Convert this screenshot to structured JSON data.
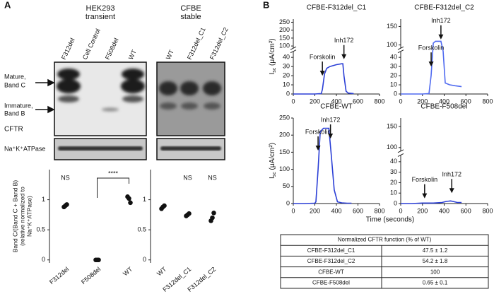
{
  "panel_labels": [
    "A",
    "B"
  ],
  "blots": {
    "groups": [
      {
        "title_lines": [
          "HEK293",
          "transient"
        ],
        "lanes": [
          "F312del",
          "Cell Control",
          "F508del",
          "WT"
        ]
      },
      {
        "title_lines": [
          "CFBE",
          "stable"
        ],
        "lanes": [
          "WT",
          "F312del_C1",
          "F312del_C2"
        ]
      }
    ],
    "band_labels": [
      [
        "Mature,",
        "Band C"
      ],
      [
        "Immature,",
        "Band B"
      ]
    ],
    "protein_labels": [
      "CFTR",
      "Na⁺K⁺ATPase"
    ]
  },
  "time_label": "Time (seconds)",
  "chart_data": [
    {
      "type": "dot",
      "categories": [
        "F312del",
        "F508del",
        "WT"
      ],
      "points": [
        [
          0.88,
          0.9,
          0.92
        ],
        [
          0,
          0,
          0
        ],
        [
          1.05,
          1.02,
          0.95
        ]
      ],
      "color": "#111111",
      "ylim": [
        -0.05,
        1.5
      ],
      "yticks": [
        0,
        0.5,
        1
      ],
      "ylabel_lines": [
        "Band C/(Band C + Band B)",
        "(relative normalized to",
        "Na⁺K⁺ATPase)"
      ],
      "annotations": [
        {
          "text": "NS",
          "category": 0
        }
      ],
      "significance": [
        {
          "text": "****",
          "from": 1,
          "to": 2
        }
      ]
    },
    {
      "type": "dot",
      "categories": [
        "WT",
        "F312del_C1",
        "F312del_C2"
      ],
      "points": [
        [
          0.85,
          0.88,
          0.9
        ],
        [
          0.73,
          0.75,
          0.77
        ],
        [
          0.65,
          0.7,
          0.78
        ]
      ],
      "color": "#111111",
      "ylim": [
        -0.05,
        1.5
      ],
      "yticks": [
        0,
        0.5,
        1
      ],
      "annotations": [
        {
          "text": "NS",
          "category": 1
        },
        {
          "text": "NS",
          "category": 2
        }
      ],
      "significance": []
    },
    {
      "type": "line",
      "title": "CFBE-F312del_C1",
      "color": "#2b3fd6",
      "x": [
        0,
        100,
        200,
        260,
        270,
        290,
        310,
        340,
        400,
        450,
        460,
        470,
        490,
        510,
        560
      ],
      "values": [
        0,
        0,
        0,
        0.5,
        5,
        22,
        28,
        30,
        32,
        33,
        33,
        20,
        3,
        1,
        0.5
      ],
      "xlim": [
        0,
        800
      ],
      "xticks": [
        0,
        200,
        400,
        600,
        800
      ],
      "ylim": [
        0,
        270
      ],
      "yticks": [
        0,
        10,
        20,
        30,
        40,
        100,
        150,
        200,
        250
      ],
      "ybreak": [
        45,
        95
      ],
      "ylabel": {
        "symbol": "I",
        "subscript": "sc",
        "unit": " (μA/cm²)"
      },
      "annotations": [
        {
          "text": "Forskolin",
          "x": 270,
          "y": 20
        },
        {
          "text": "Inh172",
          "x": 470,
          "y": 38
        }
      ]
    },
    {
      "type": "line",
      "title": "CFBE-F312del_C2",
      "color": "#4f6af0",
      "x": [
        0,
        100,
        200,
        260,
        280,
        300,
        320,
        350,
        370,
        390,
        410,
        450,
        500,
        560
      ],
      "values": [
        0,
        0,
        0,
        0.5,
        20,
        105,
        110,
        110,
        110,
        60,
        12,
        10,
        9,
        8
      ],
      "xlim": [
        0,
        800
      ],
      "xticks": [
        0,
        200,
        400,
        600,
        800
      ],
      "ylim": [
        0,
        170
      ],
      "yticks": [
        0,
        10,
        20,
        30,
        40,
        100,
        150
      ],
      "ybreak": [
        45,
        95
      ],
      "annotations": [
        {
          "text": "Forskolin",
          "x": 280,
          "y": 30
        },
        {
          "text": "Inh172",
          "x": 370,
          "y": 115
        }
      ]
    },
    {
      "type": "line",
      "title": "CFBE-WT",
      "color": "#2b3fd6",
      "x": [
        0,
        100,
        200,
        210,
        230,
        250,
        280,
        310,
        330,
        350,
        380,
        410,
        450,
        500,
        540
      ],
      "values": [
        0,
        0,
        1,
        5,
        100,
        210,
        220,
        220,
        220,
        150,
        40,
        5,
        2,
        1,
        1
      ],
      "xlim": [
        0,
        800
      ],
      "xticks": [
        0,
        200,
        400,
        600,
        800
      ],
      "ylim": [
        0,
        250
      ],
      "yticks": [
        0,
        50,
        100,
        150,
        200,
        250
      ],
      "ylabel": {
        "symbol": "I",
        "subscript": "sc",
        "unit": " (μA/cm²)"
      },
      "annotations": [
        {
          "text": "Forskolin",
          "x": 230,
          "y": 155
        },
        {
          "text": "Inh172",
          "x": 345,
          "y": 190
        }
      ]
    },
    {
      "type": "line",
      "title": "CFBE-F508del",
      "color": "#2b3fd6",
      "x": [
        0,
        100,
        200,
        300,
        380,
        420,
        460,
        480,
        520,
        560
      ],
      "values": [
        0,
        0,
        0.5,
        0.5,
        1,
        2,
        2.5,
        2,
        1,
        1
      ],
      "xlim": [
        0,
        800
      ],
      "xticks": [
        0,
        200,
        400,
        600,
        800
      ],
      "ylim": [
        0,
        170
      ],
      "yticks": [
        0,
        10,
        20,
        30,
        40,
        100,
        150
      ],
      "ybreak": [
        45,
        95
      ],
      "annotations": [
        {
          "text": "Forskolin",
          "x": 220,
          "y": 5
        },
        {
          "text": "Inh172",
          "x": 470,
          "y": 10
        }
      ]
    }
  ],
  "table": {
    "header": "Normalized CFTR function (% of WT)",
    "rows": [
      [
        "CFBE-F312del_C1",
        "47.5 ± 1.2"
      ],
      [
        "CFBE-F312del_C2",
        "54.2 ± 1.8"
      ],
      [
        "CFBE-WT",
        "100"
      ],
      [
        "CFBE-F508del",
        "0.65 ± 0.1"
      ]
    ]
  }
}
